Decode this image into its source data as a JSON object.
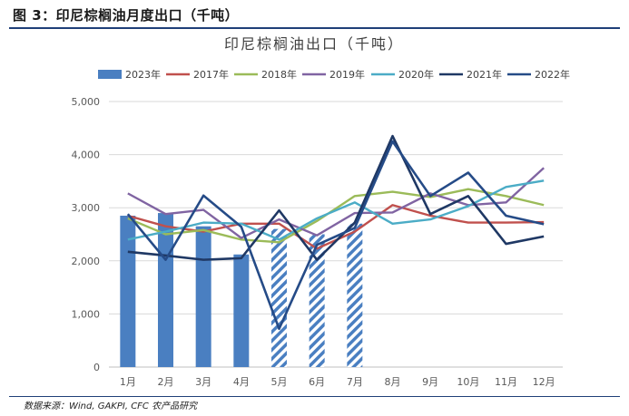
{
  "header": {
    "title": "图 3：印尼棕榈油月度出口（千吨）"
  },
  "footer": {
    "source": "数据来源：Wind, GAKPI, CFC 农产品研究"
  },
  "chart_data": {
    "type": "bar",
    "title": "印尼棕榈油出口（千吨）",
    "categories": [
      "1月",
      "2月",
      "3月",
      "4月",
      "5月",
      "6月",
      "7月",
      "8月",
      "9月",
      "10月",
      "11月",
      "12月"
    ],
    "ylim": [
      0,
      5000
    ],
    "yticks": [
      "0",
      "1,000",
      "2,000",
      "3,000",
      "4,000",
      "5,000"
    ],
    "grid": true,
    "legend_position": "top",
    "bar_series": {
      "name": "2023年",
      "color": "#4a7fc1",
      "values": [
        2850,
        2900,
        2650,
        2120,
        2600,
        2500,
        2700
      ],
      "hatched_from_index": 4
    },
    "series": [
      {
        "name": "2017年",
        "color": "#c0504d",
        "values": [
          2850,
          2650,
          2550,
          2700,
          2700,
          2230,
          2550,
          3050,
          2850,
          2720,
          2720,
          2730
        ]
      },
      {
        "name": "2018年",
        "color": "#9bbb59",
        "values": [
          2800,
          2500,
          2580,
          2400,
          2350,
          2750,
          3220,
          3300,
          3200,
          3350,
          3220,
          3050
        ]
      },
      {
        "name": "2019年",
        "color": "#8064a2",
        "values": [
          3270,
          2880,
          2960,
          2430,
          2780,
          2480,
          2900,
          2910,
          3270,
          3050,
          3100,
          3750
        ]
      },
      {
        "name": "2020年",
        "color": "#4bacc6",
        "values": [
          2400,
          2550,
          2720,
          2700,
          2400,
          2800,
          3100,
          2700,
          2780,
          3030,
          3390,
          3510
        ]
      },
      {
        "name": "2021年",
        "color": "#1f3864",
        "values": [
          2170,
          2100,
          2020,
          2050,
          2950,
          2020,
          2720,
          4350,
          2880,
          3220,
          2320,
          2460
        ]
      },
      {
        "name": "2022年",
        "color": "#254b87",
        "values": [
          2880,
          2020,
          3230,
          2640,
          720,
          2300,
          2620,
          4250,
          3220,
          3660,
          2850,
          2690
        ]
      }
    ],
    "legend": [
      "2023年",
      "2017年",
      "2018年",
      "2019年",
      "2020年",
      "2021年",
      "2022年"
    ]
  },
  "colors": {
    "rule": "#1f3f78",
    "grid": "#d9d9d9"
  }
}
